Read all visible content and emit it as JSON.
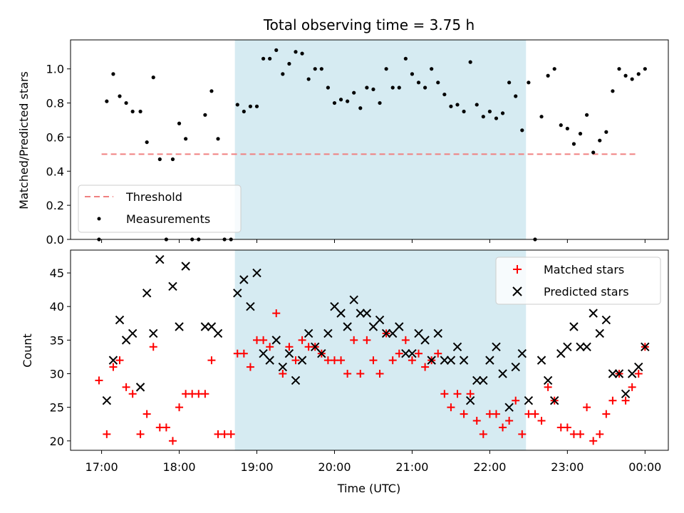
{
  "chart_data": {
    "title": "Total observing time = 3.75 h",
    "shaded_span": {
      "start": "18:43",
      "end": "22:28",
      "color": "#add8e6"
    },
    "top": {
      "type": "scatter",
      "ylabel": "Matched/Predicted stars",
      "ylim": [
        0,
        1.17
      ],
      "yticks": [
        "0.0",
        "0.2",
        "0.4",
        "0.6",
        "0.8",
        "1.0"
      ],
      "threshold": {
        "name": "Threshold",
        "value": 0.5,
        "x_range": [
          "17:00",
          "23:55"
        ],
        "color": "#f08080"
      },
      "measurements": {
        "name": "Measurements",
        "color": "#000000",
        "points": [
          [
            "16:58",
            0.0
          ],
          [
            "17:04",
            0.81
          ],
          [
            "17:09",
            0.97
          ],
          [
            "17:14",
            0.84
          ],
          [
            "17:19",
            0.8
          ],
          [
            "17:24",
            0.75
          ],
          [
            "17:30",
            0.75
          ],
          [
            "17:35",
            0.57
          ],
          [
            "17:40",
            0.95
          ],
          [
            "17:45",
            0.47
          ],
          [
            "17:50",
            0.0
          ],
          [
            "17:55",
            0.47
          ],
          [
            "18:00",
            0.68
          ],
          [
            "18:05",
            0.59
          ],
          [
            "18:10",
            0.0
          ],
          [
            "18:15",
            0.0
          ],
          [
            "18:20",
            0.73
          ],
          [
            "18:25",
            0.87
          ],
          [
            "18:30",
            0.59
          ],
          [
            "18:35",
            0.0
          ],
          [
            "18:40",
            0.0
          ],
          [
            "18:45",
            0.79
          ],
          [
            "18:50",
            0.75
          ],
          [
            "18:55",
            0.78
          ],
          [
            "19:00",
            0.78
          ],
          [
            "19:05",
            1.06
          ],
          [
            "19:10",
            1.06
          ],
          [
            "19:15",
            1.11
          ],
          [
            "19:20",
            0.97
          ],
          [
            "19:25",
            1.03
          ],
          [
            "19:30",
            1.1
          ],
          [
            "19:35",
            1.09
          ],
          [
            "19:40",
            0.94
          ],
          [
            "19:45",
            1.0
          ],
          [
            "19:50",
            1.0
          ],
          [
            "19:55",
            0.89
          ],
          [
            "20:00",
            0.8
          ],
          [
            "20:05",
            0.82
          ],
          [
            "20:10",
            0.81
          ],
          [
            "20:15",
            0.86
          ],
          [
            "20:20",
            0.77
          ],
          [
            "20:25",
            0.89
          ],
          [
            "20:30",
            0.88
          ],
          [
            "20:35",
            0.8
          ],
          [
            "20:40",
            1.0
          ],
          [
            "20:45",
            0.89
          ],
          [
            "20:50",
            0.89
          ],
          [
            "20:55",
            1.06
          ],
          [
            "21:00",
            0.97
          ],
          [
            "21:05",
            0.92
          ],
          [
            "21:10",
            0.89
          ],
          [
            "21:15",
            1.0
          ],
          [
            "21:20",
            0.92
          ],
          [
            "21:25",
            0.85
          ],
          [
            "21:30",
            0.78
          ],
          [
            "21:35",
            0.79
          ],
          [
            "21:40",
            0.75
          ],
          [
            "21:45",
            1.04
          ],
          [
            "21:50",
            0.79
          ],
          [
            "21:55",
            0.72
          ],
          [
            "22:00",
            0.75
          ],
          [
            "22:05",
            0.71
          ],
          [
            "22:10",
            0.74
          ],
          [
            "22:15",
            0.92
          ],
          [
            "22:20",
            0.84
          ],
          [
            "22:25",
            0.64
          ],
          [
            "22:30",
            0.92
          ],
          [
            "22:35",
            0.0
          ],
          [
            "22:40",
            0.72
          ],
          [
            "22:45",
            0.96
          ],
          [
            "22:50",
            1.0
          ],
          [
            "22:55",
            0.67
          ],
          [
            "23:00",
            0.65
          ],
          [
            "23:05",
            0.56
          ],
          [
            "23:10",
            0.62
          ],
          [
            "23:15",
            0.73
          ],
          [
            "23:20",
            0.51
          ],
          [
            "23:25",
            0.58
          ],
          [
            "23:30",
            0.63
          ],
          [
            "23:35",
            0.87
          ],
          [
            "23:40",
            1.0
          ],
          [
            "23:45",
            0.96
          ],
          [
            "23:50",
            0.94
          ],
          [
            "23:55",
            0.97
          ],
          [
            "00:00",
            1.0
          ]
        ]
      },
      "legend": {
        "position": "lower-left"
      }
    },
    "bottom": {
      "type": "scatter",
      "xlabel": "Time (UTC)",
      "ylabel": "Count",
      "ylim": [
        18.6,
        48.4
      ],
      "yticks": [
        "20",
        "25",
        "30",
        "35",
        "40",
        "45"
      ],
      "xticks": [
        "17:00",
        "18:00",
        "19:00",
        "20:00",
        "21:00",
        "22:00",
        "23:00",
        "00:00"
      ],
      "series": [
        {
          "name": "Matched stars",
          "marker": "plus",
          "color": "#ff0000",
          "points": [
            [
              "16:58",
              29
            ],
            [
              "17:04",
              21
            ],
            [
              "17:09",
              31
            ],
            [
              "17:14",
              32
            ],
            [
              "17:19",
              28
            ],
            [
              "17:24",
              27
            ],
            [
              "17:30",
              21
            ],
            [
              "17:35",
              24
            ],
            [
              "17:40",
              34
            ],
            [
              "17:45",
              22
            ],
            [
              "17:50",
              22
            ],
            [
              "17:55",
              20
            ],
            [
              "18:00",
              25
            ],
            [
              "18:05",
              27
            ],
            [
              "18:10",
              27
            ],
            [
              "18:15",
              27
            ],
            [
              "18:20",
              27
            ],
            [
              "18:25",
              32
            ],
            [
              "18:30",
              21
            ],
            [
              "18:35",
              21
            ],
            [
              "18:40",
              21
            ],
            [
              "18:45",
              33
            ],
            [
              "18:50",
              33
            ],
            [
              "18:55",
              31
            ],
            [
              "19:00",
              35
            ],
            [
              "19:05",
              35
            ],
            [
              "19:10",
              34
            ],
            [
              "19:15",
              39
            ],
            [
              "19:20",
              30
            ],
            [
              "19:25",
              34
            ],
            [
              "19:30",
              32
            ],
            [
              "19:35",
              35
            ],
            [
              "19:40",
              34
            ],
            [
              "19:45",
              34
            ],
            [
              "19:50",
              33
            ],
            [
              "19:55",
              32
            ],
            [
              "20:00",
              32
            ],
            [
              "20:05",
              32
            ],
            [
              "20:10",
              30
            ],
            [
              "20:15",
              35
            ],
            [
              "20:20",
              30
            ],
            [
              "20:25",
              35
            ],
            [
              "20:30",
              32
            ],
            [
              "20:35",
              30
            ],
            [
              "20:40",
              36
            ],
            [
              "20:45",
              32
            ],
            [
              "20:50",
              33
            ],
            [
              "20:55",
              35
            ],
            [
              "21:00",
              32
            ],
            [
              "21:05",
              33
            ],
            [
              "21:10",
              31
            ],
            [
              "21:15",
              32
            ],
            [
              "21:20",
              33
            ],
            [
              "21:25",
              27
            ],
            [
              "21:30",
              25
            ],
            [
              "21:35",
              27
            ],
            [
              "21:40",
              24
            ],
            [
              "21:45",
              27
            ],
            [
              "21:50",
              23
            ],
            [
              "21:55",
              21
            ],
            [
              "22:00",
              24
            ],
            [
              "22:05",
              24
            ],
            [
              "22:10",
              22
            ],
            [
              "22:15",
              23
            ],
            [
              "22:20",
              26
            ],
            [
              "22:25",
              21
            ],
            [
              "22:30",
              24
            ],
            [
              "22:35",
              24
            ],
            [
              "22:40",
              23
            ],
            [
              "22:45",
              28
            ],
            [
              "22:50",
              26
            ],
            [
              "22:55",
              22
            ],
            [
              "23:00",
              22
            ],
            [
              "23:05",
              21
            ],
            [
              "23:10",
              21
            ],
            [
              "23:15",
              25
            ],
            [
              "23:20",
              20
            ],
            [
              "23:25",
              21
            ],
            [
              "23:30",
              24
            ],
            [
              "23:35",
              26
            ],
            [
              "23:40",
              30
            ],
            [
              "23:45",
              26
            ],
            [
              "23:50",
              28
            ],
            [
              "23:55",
              30
            ],
            [
              "00:00",
              34
            ]
          ]
        },
        {
          "name": "Predicted stars",
          "marker": "x",
          "color": "#000000",
          "points": [
            [
              "17:04",
              26
            ],
            [
              "17:09",
              32
            ],
            [
              "17:14",
              38
            ],
            [
              "17:19",
              35
            ],
            [
              "17:24",
              36
            ],
            [
              "17:30",
              28
            ],
            [
              "17:35",
              42
            ],
            [
              "17:40",
              36
            ],
            [
              "17:45",
              47
            ],
            [
              "17:55",
              43
            ],
            [
              "18:00",
              37
            ],
            [
              "18:05",
              46
            ],
            [
              "18:20",
              37
            ],
            [
              "18:25",
              37
            ],
            [
              "18:30",
              36
            ],
            [
              "18:45",
              42
            ],
            [
              "18:50",
              44
            ],
            [
              "18:55",
              40
            ],
            [
              "19:00",
              45
            ],
            [
              "19:05",
              33
            ],
            [
              "19:10",
              32
            ],
            [
              "19:15",
              35
            ],
            [
              "19:20",
              31
            ],
            [
              "19:25",
              33
            ],
            [
              "19:30",
              29
            ],
            [
              "19:35",
              32
            ],
            [
              "19:40",
              36
            ],
            [
              "19:45",
              34
            ],
            [
              "19:50",
              33
            ],
            [
              "19:55",
              36
            ],
            [
              "20:00",
              40
            ],
            [
              "20:05",
              39
            ],
            [
              "20:10",
              37
            ],
            [
              "20:15",
              41
            ],
            [
              "20:20",
              39
            ],
            [
              "20:25",
              39
            ],
            [
              "20:30",
              37
            ],
            [
              "20:35",
              38
            ],
            [
              "20:40",
              36
            ],
            [
              "20:45",
              36
            ],
            [
              "20:50",
              37
            ],
            [
              "20:55",
              33
            ],
            [
              "21:00",
              33
            ],
            [
              "21:05",
              36
            ],
            [
              "21:10",
              35
            ],
            [
              "21:15",
              32
            ],
            [
              "21:20",
              36
            ],
            [
              "21:25",
              32
            ],
            [
              "21:30",
              32
            ],
            [
              "21:35",
              34
            ],
            [
              "21:40",
              32
            ],
            [
              "21:45",
              26
            ],
            [
              "21:50",
              29
            ],
            [
              "21:55",
              29
            ],
            [
              "22:00",
              32
            ],
            [
              "22:05",
              34
            ],
            [
              "22:10",
              30
            ],
            [
              "22:15",
              25
            ],
            [
              "22:20",
              31
            ],
            [
              "22:25",
              33
            ],
            [
              "22:30",
              26
            ],
            [
              "22:40",
              32
            ],
            [
              "22:45",
              29
            ],
            [
              "22:50",
              26
            ],
            [
              "22:55",
              33
            ],
            [
              "23:00",
              34
            ],
            [
              "23:05",
              37
            ],
            [
              "23:10",
              34
            ],
            [
              "23:15",
              34
            ],
            [
              "23:20",
              39
            ],
            [
              "23:25",
              36
            ],
            [
              "23:30",
              38
            ],
            [
              "23:35",
              30
            ],
            [
              "23:40",
              30
            ],
            [
              "23:45",
              27
            ],
            [
              "23:50",
              30
            ],
            [
              "23:55",
              31
            ],
            [
              "00:00",
              34
            ]
          ]
        }
      ],
      "legend": {
        "position": "upper-right"
      }
    }
  }
}
